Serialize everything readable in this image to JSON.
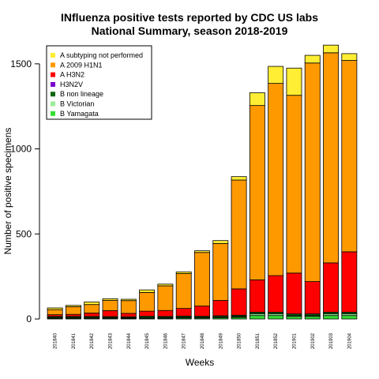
{
  "chart_data": {
    "type": "bar",
    "stacked": true,
    "title": "INfluenza positive tests reported by CDC US labs",
    "subtitle": "National Summary, season 2018-2019",
    "xlabel": "Weeks",
    "ylabel": "Number of positive specimens",
    "ylim": [
      0,
      1620
    ],
    "yticks": [
      0,
      500,
      1000,
      1500
    ],
    "grid": false,
    "legend_position": "top-left",
    "categories": [
      "201840",
      "201841",
      "201842",
      "201843",
      "201844",
      "201845",
      "201846",
      "201847",
      "201848",
      "201849",
      "201850",
      "201851",
      "201852",
      "201901",
      "201902",
      "201903",
      "201904"
    ],
    "series": [
      {
        "name": "B Yamagata",
        "color": "#33dd33",
        "values": [
          5,
          5,
          5,
          5,
          4,
          5,
          5,
          6,
          6,
          8,
          10,
          20,
          20,
          15,
          15,
          20,
          20
        ]
      },
      {
        "name": "B Victorian",
        "color": "#99ee99",
        "values": [
          3,
          3,
          3,
          3,
          3,
          3,
          3,
          3,
          3,
          3,
          4,
          10,
          10,
          5,
          5,
          10,
          10
        ]
      },
      {
        "name": "B non lineage",
        "color": "#116611",
        "values": [
          7,
          7,
          7,
          6,
          6,
          8,
          7,
          8,
          7,
          8,
          8,
          10,
          10,
          10,
          10,
          10,
          10
        ]
      },
      {
        "name": "H3N2V",
        "color": "#7700cc",
        "values": [
          0,
          0,
          0,
          0,
          0,
          0,
          0,
          0,
          0,
          0,
          0,
          0,
          0,
          0,
          0,
          0,
          0
        ]
      },
      {
        "name": "A H3N2",
        "color": "#ff0000",
        "values": [
          10,
          12,
          20,
          35,
          20,
          30,
          35,
          45,
          60,
          90,
          155,
          190,
          215,
          240,
          190,
          290,
          355
        ]
      },
      {
        "name": "A 2009 H1N1",
        "color": "#ff9900",
        "values": [
          30,
          45,
          50,
          60,
          75,
          110,
          145,
          205,
          315,
          335,
          640,
          1025,
          1130,
          1045,
          1285,
          1235,
          1125
        ]
      },
      {
        "name": "A subtyping not performed",
        "color": "#ffee33",
        "values": [
          10,
          8,
          15,
          10,
          8,
          15,
          10,
          10,
          10,
          17,
          20,
          75,
          100,
          160,
          45,
          45,
          40
        ]
      }
    ]
  }
}
